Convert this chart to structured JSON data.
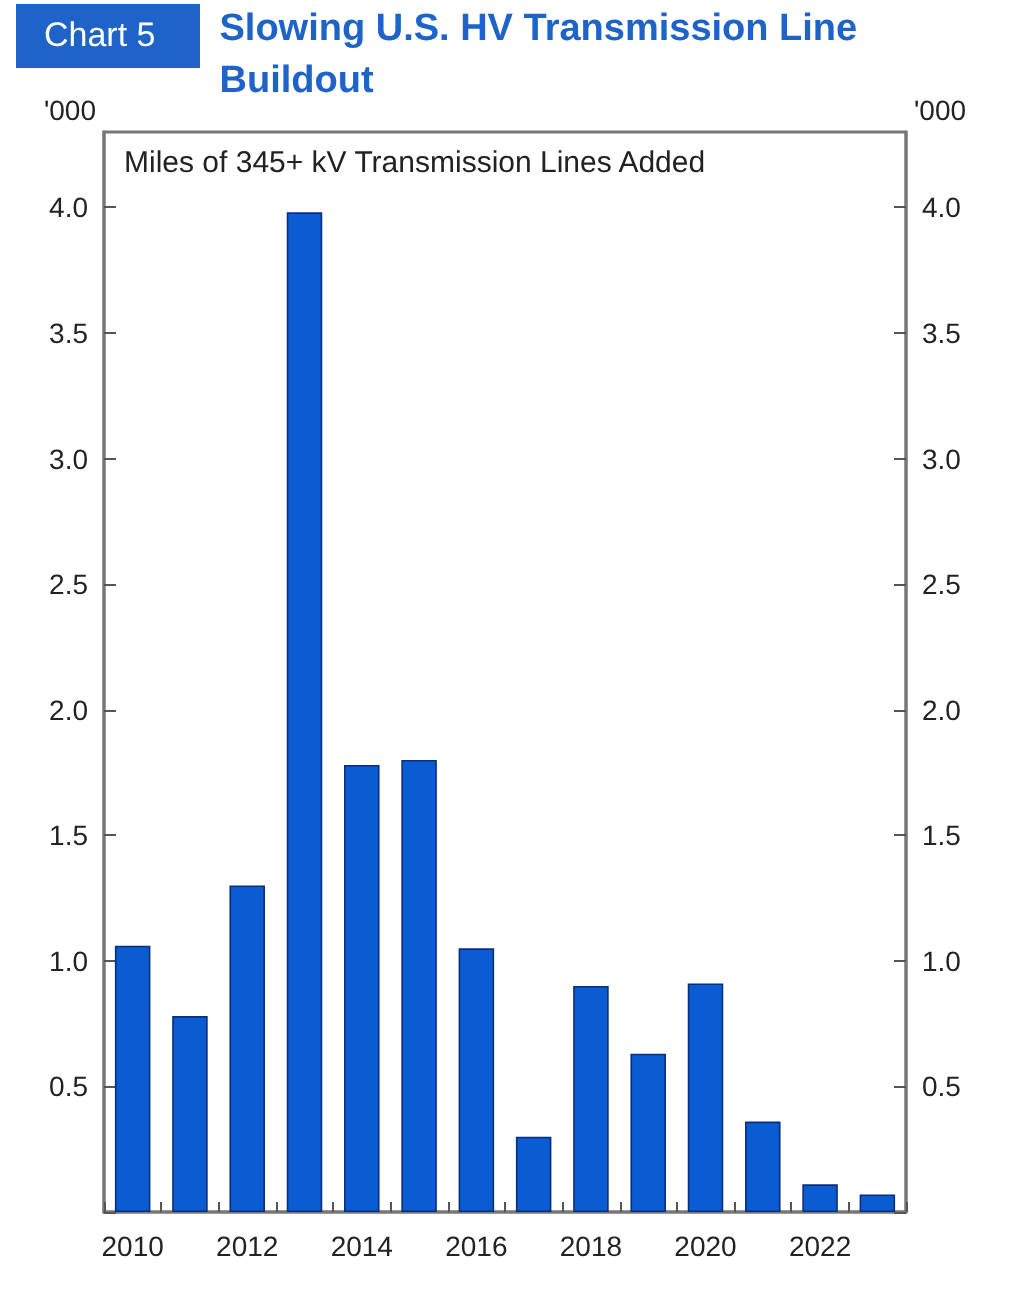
{
  "chart_data": {
    "type": "bar",
    "title": "Slowing U.S. HV Transmission Line Buildout",
    "subtitle": "Chart 5",
    "annotations": [
      "Miles of 345+ kV Transmission Lines Added"
    ],
    "ylabel": "'000",
    "y2label": "'000",
    "categories": [
      "2010",
      null,
      "2012",
      null,
      "2014",
      null,
      "2016",
      null,
      "2018",
      null,
      "2020",
      null,
      "2022",
      null
    ],
    "values": [
      1.06,
      0.78,
      1.3,
      3.98,
      1.78,
      1.8,
      1.05,
      0.3,
      0.9,
      0.63,
      0.91,
      0.36,
      0.11,
      0.07
    ],
    "color": "#0b5bd3",
    "ylim": [
      0,
      4.3
    ],
    "yticks": [
      {
        "value": 0,
        "label": null
      },
      0.5,
      {
        "value": 1,
        "label": "1.0"
      },
      1.5,
      {
        "value": 2,
        "label": "2.0"
      },
      2.5,
      {
        "value": 3,
        "label": "3.0"
      },
      3.5,
      {
        "value": 4,
        "label": "4.0"
      }
    ],
    "y2lim": [
      0,
      4.3
    ],
    "y2ticks": [
      {
        "value": 0,
        "label": null
      },
      0.5,
      {
        "value": 1,
        "label": "1.0"
      },
      1.5,
      {
        "value": 2,
        "label": "2.0"
      },
      2.5,
      {
        "value": 3,
        "label": "3.0"
      },
      3.5,
      {
        "value": 4,
        "label": "4.0"
      }
    ],
    "grid": false
  }
}
